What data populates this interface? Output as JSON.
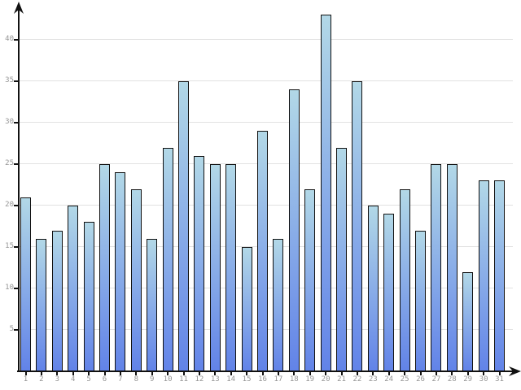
{
  "chart_data": {
    "type": "bar",
    "title": "",
    "xlabel": "",
    "ylabel": "",
    "categories": [
      "1",
      "2",
      "3",
      "4",
      "5",
      "6",
      "7",
      "8",
      "9",
      "10",
      "11",
      "12",
      "13",
      "14",
      "15",
      "16",
      "17",
      "18",
      "19",
      "20",
      "21",
      "22",
      "23",
      "24",
      "25",
      "26",
      "27",
      "28",
      "29",
      "30",
      "31"
    ],
    "values": [
      21,
      16,
      17,
      20,
      18,
      25,
      24,
      22,
      16,
      27,
      35,
      26,
      25,
      25,
      15,
      29,
      16,
      34,
      22,
      43,
      27,
      35,
      20,
      19,
      22,
      17,
      25,
      25,
      12,
      23,
      23
    ],
    "ylim": [
      0,
      45
    ],
    "yticks": [
      5,
      10,
      15,
      20,
      25,
      30,
      35,
      40
    ],
    "grid": true,
    "legend": "none",
    "colors": {
      "bar_gradient_top": "#b2d8e7",
      "bar_gradient_bottom": "#6283e8",
      "bar_border": "#111111",
      "gridline": "#e2e2e2",
      "axis": "#111111",
      "tick_label": "#959595",
      "background": "#ffffff"
    }
  }
}
